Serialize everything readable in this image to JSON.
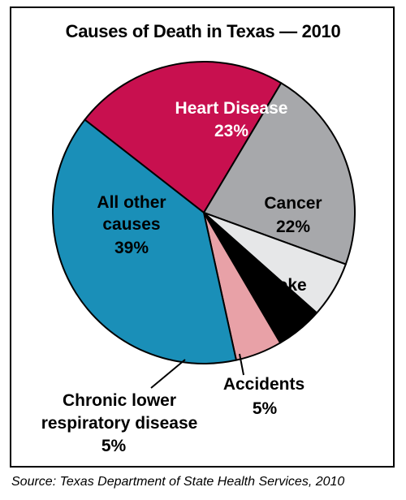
{
  "chart_data": {
    "type": "pie",
    "title": "Causes of Death in Texas — 2010",
    "slices": [
      {
        "label": "Heart Disease",
        "value": 23,
        "value_label": "23%",
        "color": "#c8104f",
        "text_color": "#ffffff"
      },
      {
        "label": "Cancer",
        "value": 22,
        "value_label": "22%",
        "color": "#a7a8ab",
        "text_color": "#000000"
      },
      {
        "label": "Stroke",
        "value": 6,
        "value_label": "6%",
        "color": "#e6e7e8",
        "text_color": "#000000"
      },
      {
        "label": "Accidents",
        "value": 5,
        "value_label": "5%",
        "color": "#000000",
        "text_color": "#000000"
      },
      {
        "label": "Chronic lower respiratory disease",
        "value": 5,
        "value_label": "5%",
        "color": "#e8a1a7",
        "text_color": "#000000"
      },
      {
        "label": "All other causes",
        "value": 39,
        "value_label": "39%",
        "color": "#1a8fb8",
        "text_color": "#000000"
      }
    ],
    "source": "Source: Texas Department of State Health Services, 2010"
  }
}
